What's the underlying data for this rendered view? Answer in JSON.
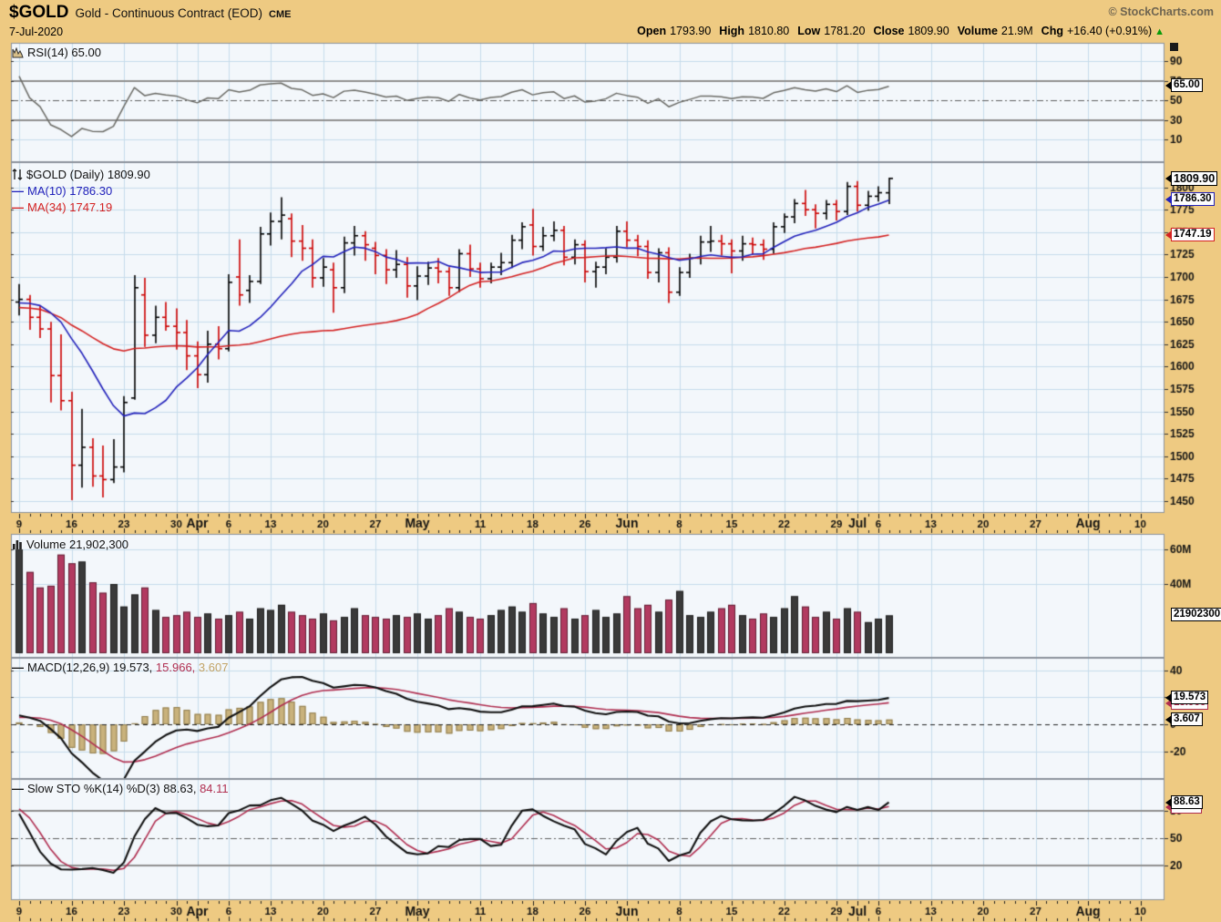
{
  "header": {
    "symbol": "$GOLD",
    "name": "Gold - Continuous Contract (EOD)",
    "exchange": "CME",
    "date": "7-Jul-2020",
    "credit": "© StockCharts.com",
    "quote": [
      {
        "k": "Open",
        "v": "1793.90"
      },
      {
        "k": "High",
        "v": "1810.80"
      },
      {
        "k": "Low",
        "v": "1781.20"
      },
      {
        "k": "Close",
        "v": "1809.90"
      },
      {
        "k": "Volume",
        "v": "21.9M"
      },
      {
        "k": "Chg",
        "v": "+16.40 (+0.91%)"
      }
    ],
    "chg_arrow": "▲"
  },
  "legends": {
    "dash": "—",
    "rsi": {
      "text": "RSI(14) 65.00"
    },
    "price": {
      "text": "$GOLD (Daily) 1809.90",
      "ma10": "MA(10) 1786.30",
      "ma34": "MA(34) 1747.19"
    },
    "volume": {
      "text": "Volume 21,902,300"
    },
    "macd": {
      "p1": "MACD(12,26,9) 19.573,",
      "p2": "15.966,",
      "p3": "3.607"
    },
    "sto": {
      "p1": "Slow STO %K(14) %D(3) 88.63,",
      "p2": "84.11"
    }
  },
  "axis_boxes": {
    "rsi": "65.00",
    "price": "1809.90",
    "ma10": "1786.30",
    "ma34": "1747.19",
    "volume": "21902300",
    "macd": "19.573",
    "signal": "15.966",
    "hist": "3.607",
    "stoK": "88.63",
    "stoD": "84.11"
  },
  "colors": {
    "background": "#eeca82",
    "panel": "#f3f7fb",
    "grid": "#c6dcec",
    "frame": "#8b929b",
    "up": "#000000",
    "down": "#cc0000",
    "volume_up": "#3a3a3a",
    "volume_down": "#b23a60",
    "ma10": "#2222bb",
    "ma34": "#d42222",
    "signal": "#b02e50",
    "histogram": "#c9b27c",
    "rsi_line": "#6b6b66",
    "change_green": "#089b08"
  },
  "xaxis": {
    "total_slots": 108,
    "labels": [
      {
        "slot": 0,
        "t": "9"
      },
      {
        "slot": 5,
        "t": "16"
      },
      {
        "slot": 10,
        "t": "23"
      },
      {
        "slot": 15,
        "t": "30"
      },
      {
        "slot": 17,
        "t": "Apr",
        "m": true
      },
      {
        "slot": 20,
        "t": "6"
      },
      {
        "slot": 24,
        "t": "13"
      },
      {
        "slot": 29,
        "t": "20"
      },
      {
        "slot": 34,
        "t": "27"
      },
      {
        "slot": 38,
        "t": "May",
        "m": true
      },
      {
        "slot": 44,
        "t": "11"
      },
      {
        "slot": 49,
        "t": "18"
      },
      {
        "slot": 54,
        "t": "26"
      },
      {
        "slot": 58,
        "t": "Jun",
        "m": true
      },
      {
        "slot": 63,
        "t": "8"
      },
      {
        "slot": 68,
        "t": "15"
      },
      {
        "slot": 73,
        "t": "22"
      },
      {
        "slot": 78,
        "t": "29"
      },
      {
        "slot": 80,
        "t": "Jul",
        "m": true
      },
      {
        "slot": 82,
        "t": "6"
      },
      {
        "slot": 87,
        "t": "13"
      },
      {
        "slot": 92,
        "t": "20"
      },
      {
        "slot": 97,
        "t": "27"
      },
      {
        "slot": 102,
        "t": "Aug",
        "m": true
      },
      {
        "slot": 107,
        "t": "10"
      }
    ]
  },
  "chart_data": [
    {
      "id": "rsi",
      "type": "line",
      "indicator": "RSI",
      "params": "14",
      "last": 65.0,
      "ylim": [
        0,
        100
      ],
      "yticks": [
        90,
        70,
        50,
        30,
        10
      ],
      "overbought": 70,
      "oversold": 30,
      "midline": 50,
      "blue_grid": [
        90,
        10
      ],
      "derived_from": "price.close"
    },
    {
      "id": "price",
      "type": "ohlc",
      "symbol": "$GOLD",
      "interval": "Daily",
      "last": 1809.9,
      "ylim": [
        1442,
        1828
      ],
      "yticks": [
        1800,
        1775,
        1750,
        1725,
        1700,
        1675,
        1650,
        1625,
        1600,
        1575,
        1550,
        1525,
        1500,
        1475,
        1450
      ],
      "ma": [
        {
          "window": 10,
          "last": 1786.3
        },
        {
          "window": 34,
          "last": 1747.19
        }
      ],
      "dates": [
        "Mar-9",
        "Mar-10",
        "Mar-11",
        "Mar-12",
        "Mar-13",
        "Mar-16",
        "Mar-17",
        "Mar-18",
        "Mar-19",
        "Mar-20",
        "Mar-23",
        "Mar-24",
        "Mar-25",
        "Mar-26",
        "Mar-27",
        "Mar-30",
        "Mar-31",
        "Apr-1",
        "Apr-2",
        "Apr-3",
        "Apr-6",
        "Apr-7",
        "Apr-8",
        "Apr-9",
        "Apr-13",
        "Apr-14",
        "Apr-15",
        "Apr-16",
        "Apr-17",
        "Apr-20",
        "Apr-21",
        "Apr-22",
        "Apr-23",
        "Apr-24",
        "Apr-27",
        "Apr-28",
        "Apr-29",
        "Apr-30",
        "May-1",
        "May-4",
        "May-5",
        "May-6",
        "May-7",
        "May-8",
        "May-11",
        "May-12",
        "May-13",
        "May-14",
        "May-15",
        "May-18",
        "May-19",
        "May-20",
        "May-21",
        "May-22",
        "May-26",
        "May-27",
        "May-28",
        "May-29",
        "Jun-1",
        "Jun-2",
        "Jun-3",
        "Jun-4",
        "Jun-5",
        "Jun-8",
        "Jun-9",
        "Jun-10",
        "Jun-11",
        "Jun-12",
        "Jun-15",
        "Jun-16",
        "Jun-17",
        "Jun-18",
        "Jun-19",
        "Jun-22",
        "Jun-23",
        "Jun-24",
        "Jun-25",
        "Jun-26",
        "Jun-29",
        "Jun-30",
        "Jul-1",
        "Jul-2",
        "Jul-6",
        "Jul-7"
      ],
      "ohlc": [
        [
          1672,
          1692,
          1657,
          1675
        ],
        [
          1675,
          1680,
          1641,
          1655
        ],
        [
          1655,
          1668,
          1632,
          1642
        ],
        [
          1642,
          1650,
          1560,
          1590
        ],
        [
          1590,
          1636,
          1551,
          1562
        ],
        [
          1562,
          1572,
          1451,
          1490
        ],
        [
          1490,
          1553,
          1465,
          1510
        ],
        [
          1510,
          1520,
          1466,
          1478
        ],
        [
          1478,
          1512,
          1454,
          1474
        ],
        [
          1474,
          1519,
          1470,
          1488
        ],
        [
          1488,
          1567,
          1482,
          1560
        ],
        [
          1565,
          1702,
          1563,
          1688
        ],
        [
          1680,
          1699,
          1622,
          1635
        ],
        [
          1635,
          1668,
          1626,
          1655
        ],
        [
          1655,
          1672,
          1640,
          1645
        ],
        [
          1645,
          1665,
          1619,
          1638
        ],
        [
          1638,
          1652,
          1596,
          1612
        ],
        [
          1612,
          1628,
          1576,
          1591
        ],
        [
          1591,
          1640,
          1582,
          1625
        ],
        [
          1625,
          1645,
          1608,
          1620
        ],
        [
          1620,
          1703,
          1617,
          1694
        ],
        [
          1700,
          1742,
          1668,
          1680
        ],
        [
          1685,
          1702,
          1671,
          1695
        ],
        [
          1695,
          1756,
          1692,
          1748
        ],
        [
          1748,
          1772,
          1735,
          1762
        ],
        [
          1762,
          1789,
          1742,
          1769
        ],
        [
          1765,
          1771,
          1722,
          1740
        ],
        [
          1740,
          1758,
          1718,
          1732
        ],
        [
          1732,
          1742,
          1688,
          1699
        ],
        [
          1699,
          1721,
          1689,
          1711
        ],
        [
          1708,
          1716,
          1660,
          1688
        ],
        [
          1688,
          1745,
          1682,
          1738
        ],
        [
          1738,
          1757,
          1724,
          1746
        ],
        [
          1746,
          1751,
          1718,
          1736
        ],
        [
          1732,
          1739,
          1703,
          1724
        ],
        [
          1724,
          1731,
          1692,
          1708
        ],
        [
          1708,
          1730,
          1699,
          1714
        ],
        [
          1714,
          1722,
          1677,
          1690
        ],
        [
          1690,
          1712,
          1674,
          1701
        ],
        [
          1701,
          1717,
          1691,
          1710
        ],
        [
          1710,
          1721,
          1693,
          1706
        ],
        [
          1706,
          1711,
          1679,
          1688
        ],
        [
          1688,
          1731,
          1683,
          1726
        ],
        [
          1726,
          1736,
          1700,
          1709
        ],
        [
          1709,
          1716,
          1688,
          1698
        ],
        [
          1698,
          1716,
          1693,
          1711
        ],
        [
          1711,
          1727,
          1702,
          1716
        ],
        [
          1716,
          1747,
          1710,
          1741
        ],
        [
          1741,
          1761,
          1731,
          1756
        ],
        [
          1758,
          1776,
          1724,
          1734
        ],
        [
          1734,
          1756,
          1729,
          1746
        ],
        [
          1746,
          1762,
          1740,
          1752
        ],
        [
          1752,
          1757,
          1713,
          1722
        ],
        [
          1722,
          1742,
          1714,
          1736
        ],
        [
          1736,
          1741,
          1694,
          1706
        ],
        [
          1706,
          1717,
          1688,
          1711
        ],
        [
          1711,
          1732,
          1703,
          1722
        ],
        [
          1722,
          1757,
          1716,
          1751
        ],
        [
          1751,
          1762,
          1733,
          1741
        ],
        [
          1741,
          1747,
          1723,
          1734
        ],
        [
          1734,
          1741,
          1698,
          1705
        ],
        [
          1705,
          1732,
          1694,
          1727
        ],
        [
          1727,
          1733,
          1671,
          1683
        ],
        [
          1683,
          1711,
          1679,
          1705
        ],
        [
          1705,
          1726,
          1699,
          1721
        ],
        [
          1721,
          1746,
          1714,
          1739
        ],
        [
          1739,
          1757,
          1728,
          1740
        ],
        [
          1740,
          1747,
          1724,
          1737
        ],
        [
          1737,
          1742,
          1704,
          1729
        ],
        [
          1729,
          1746,
          1718,
          1737
        ],
        [
          1737,
          1744,
          1725,
          1736
        ],
        [
          1736,
          1742,
          1719,
          1731
        ],
        [
          1731,
          1761,
          1726,
          1756
        ],
        [
          1756,
          1771,
          1749,
          1767
        ],
        [
          1767,
          1787,
          1760,
          1782
        ],
        [
          1782,
          1797,
          1768,
          1775
        ],
        [
          1775,
          1781,
          1754,
          1771
        ],
        [
          1771,
          1786,
          1764,
          1781
        ],
        [
          1781,
          1786,
          1763,
          1773
        ],
        [
          1773,
          1806,
          1769,
          1801
        ],
        [
          1801,
          1807,
          1773,
          1780
        ],
        [
          1780,
          1796,
          1774,
          1790
        ],
        [
          1790,
          1801,
          1784,
          1794
        ],
        [
          1793.9,
          1810.8,
          1781.2,
          1809.9
        ]
      ]
    },
    {
      "id": "volume",
      "type": "bar",
      "label": "Volume",
      "last": 21902300,
      "ylim": [
        0,
        71
      ],
      "yticks": [
        60,
        40
      ],
      "unit": "M",
      "values_m": [
        60,
        47,
        38,
        39,
        57,
        52,
        53,
        41,
        35,
        40,
        27,
        34,
        38,
        25,
        21,
        22,
        24,
        21,
        23,
        20,
        22,
        24,
        20,
        26,
        25,
        28,
        24,
        22,
        20,
        23,
        19,
        21,
        26,
        22,
        21,
        20,
        22,
        21,
        23,
        20,
        22,
        26,
        24,
        21,
        20,
        22,
        25,
        27,
        24,
        29,
        23,
        21,
        26,
        20,
        22,
        25,
        21,
        23,
        33,
        26,
        28,
        24,
        31,
        36,
        22,
        21,
        24,
        26,
        28,
        22,
        20,
        23,
        21,
        26,
        33,
        27,
        21,
        24,
        20,
        26,
        24,
        18,
        20,
        21.9
      ]
    },
    {
      "id": "macd",
      "type": "line+histogram",
      "params": [
        12,
        26,
        9
      ],
      "last": {
        "macd": 19.573,
        "signal": 15.966,
        "hist": 3.607
      },
      "ylim": [
        -40,
        48
      ],
      "yticks": [
        40,
        20,
        0,
        -20
      ],
      "zero_line": "dashed",
      "derived_from": "price.close"
    },
    {
      "id": "sto",
      "type": "line",
      "indicator": "Slow STO",
      "params": "%K(14) %D(3)",
      "last": {
        "k": 88.63,
        "d": 84.11
      },
      "ylim": [
        0,
        100
      ],
      "yticks": [
        80,
        50,
        20
      ],
      "overbought": 80,
      "oversold": 20,
      "midline": 50,
      "derived_from": "price.ohlc"
    }
  ]
}
